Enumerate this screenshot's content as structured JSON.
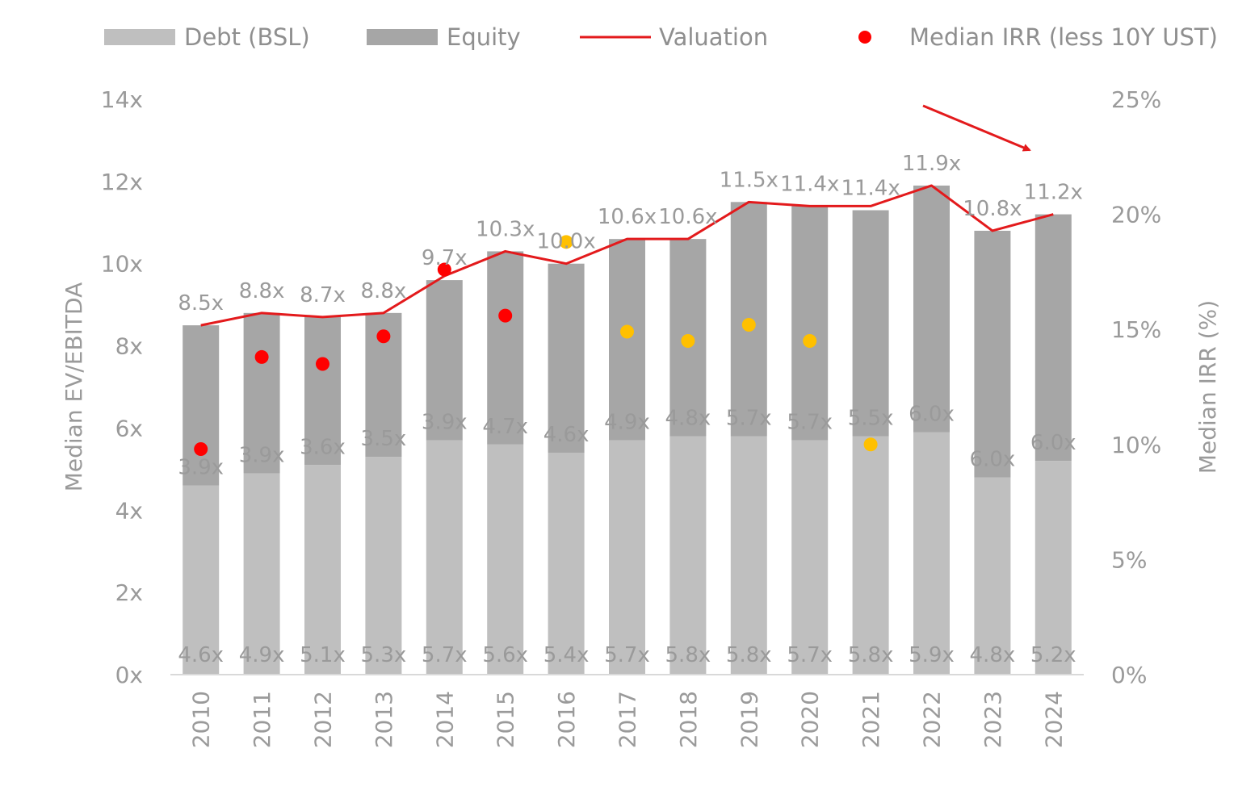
{
  "chart_data": {
    "type": "bar",
    "stacked": true,
    "categories": [
      "2010",
      "2011",
      "2012",
      "2013",
      "2014",
      "2015",
      "2016",
      "2017",
      "2018",
      "2019",
      "2020",
      "2021",
      "2022",
      "2023",
      "2024"
    ],
    "series": [
      {
        "name": "Debt (BSL)",
        "kind": "bar",
        "axis": "left",
        "color": "#bfbfbf",
        "values": [
          4.6,
          4.9,
          5.1,
          5.3,
          5.7,
          5.6,
          5.4,
          5.7,
          5.8,
          5.8,
          5.7,
          5.8,
          5.9,
          4.8,
          5.2
        ],
        "labels": [
          "4.6x",
          "4.9x",
          "5.1x",
          "5.3x",
          "5.7x",
          "5.6x",
          "5.4x",
          "5.7x",
          "5.8x",
          "5.8x",
          "5.7x",
          "5.8x",
          "5.9x",
          "4.8x",
          "5.2x"
        ]
      },
      {
        "name": "Equity",
        "kind": "bar",
        "axis": "left",
        "color": "#a6a6a6",
        "values": [
          3.9,
          3.9,
          3.6,
          3.5,
          3.9,
          4.7,
          4.6,
          4.9,
          4.8,
          5.7,
          5.7,
          5.5,
          6.0,
          6.0,
          6.0
        ],
        "labels": [
          "3.9x",
          "3.9x",
          "3.6x",
          "3.5x",
          "3.9x",
          "4.7x",
          "4.6x",
          "4.9x",
          "4.8x",
          "5.7x",
          "5.7x",
          "5.5x",
          "6.0x",
          "6.0x",
          "6.0x"
        ]
      },
      {
        "name": "Valuation",
        "kind": "line",
        "axis": "left",
        "color": "#e31a1c",
        "values": [
          8.5,
          8.8,
          8.7,
          8.8,
          9.7,
          10.3,
          10.0,
          10.6,
          10.6,
          11.5,
          11.4,
          11.4,
          11.9,
          10.8,
          11.2
        ],
        "labels": [
          "8.5x",
          "8.8x",
          "8.7x",
          "8.8x",
          "9.7x",
          "10.3x",
          "10.0x",
          "10.6x",
          "10.6x",
          "11.5x",
          "11.4x",
          "11.4x",
          "11.9x",
          "10.8x",
          "11.2x"
        ]
      },
      {
        "name": "Median IRR (less 10Y UST)",
        "kind": "scatter",
        "axis": "right",
        "color": "#ff0000",
        "values": [
          9.8,
          13.8,
          13.5,
          14.7,
          17.6,
          15.6,
          18.8,
          14.9,
          14.5,
          15.2,
          14.5,
          10.0,
          null,
          null,
          null
        ]
      }
    ],
    "highlight_color": "#ffc000",
    "highlighted_points": [
      "2016",
      "2017",
      "2018",
      "2019",
      "2020",
      "2021"
    ],
    "left_axis": {
      "title": "Median EV/EBITDA",
      "ylim": [
        0,
        14
      ],
      "ticks": [
        "0x",
        "2x",
        "4x",
        "6x",
        "8x",
        "10x",
        "12x",
        "14x"
      ]
    },
    "right_axis": {
      "title": "Median IRR (%)",
      "ylim": [
        0,
        25
      ],
      "ticks": [
        "0%",
        "5%",
        "10%",
        "15%",
        "20%",
        "25%"
      ]
    },
    "legend_position": "top",
    "grid": false
  }
}
